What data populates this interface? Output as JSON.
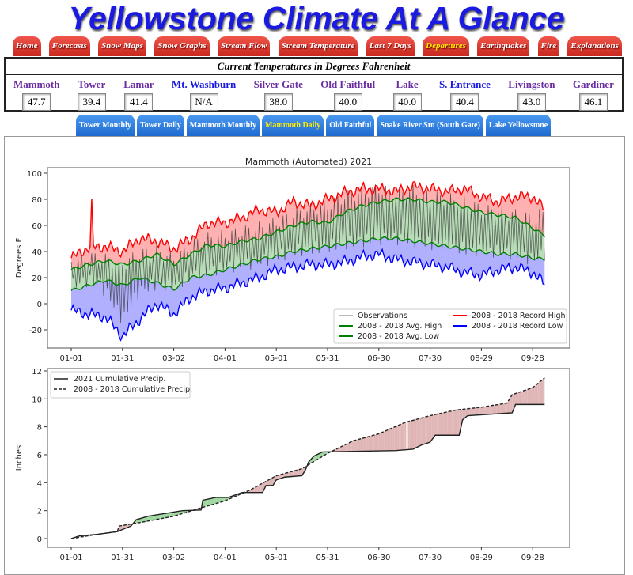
{
  "title": "Yellowstone Climate At A Glance",
  "nav": [
    {
      "label": "Home"
    },
    {
      "label": "Forecasts"
    },
    {
      "label": "Snow Maps"
    },
    {
      "label": "Snow Graphs"
    },
    {
      "label": "Stream Flow"
    },
    {
      "label": "Stream Temperature"
    },
    {
      "label": "Last 7 Days"
    },
    {
      "label": "Departures",
      "active": true
    },
    {
      "label": "Earthquakes"
    },
    {
      "label": "Fire"
    },
    {
      "label": "Explanations"
    }
  ],
  "temps": {
    "heading": "Current Temperatures in Degrees Fahrenheit",
    "stations": [
      {
        "name": "Mammoth",
        "value": "47.7"
      },
      {
        "name": "Tower",
        "value": "39.4"
      },
      {
        "name": "Lamar",
        "value": "41.4"
      },
      {
        "name": "Mt. Washburn",
        "value": "N/A",
        "link_color": "blue"
      },
      {
        "name": "Silver Gate",
        "value": "38.0"
      },
      {
        "name": "Old Faithful",
        "value": "40.0"
      },
      {
        "name": "Lake",
        "value": "40.0"
      },
      {
        "name": "S. Entrance",
        "value": "40.4",
        "link_color": "blue"
      },
      {
        "name": "Livingston",
        "value": "43.0"
      },
      {
        "name": "Gardiner",
        "value": "46.1"
      }
    ]
  },
  "subnav": [
    {
      "label": "Tower Monthly"
    },
    {
      "label": "Tower Daily"
    },
    {
      "label": "Mammoth Monthly"
    },
    {
      "label": "Mammoth Daily",
      "active": true
    },
    {
      "label": "Old Faithful"
    },
    {
      "label": "Snake River Stn (South Gate)"
    },
    {
      "label": "Lake Yellowstone"
    }
  ],
  "colors": {
    "nav_tab": "#d8352a",
    "sub_tab": "#2e7fe0",
    "active_text": "#ffea00",
    "record_high": "#ff0000",
    "record_low": "#0000ff",
    "avg": "#008000",
    "above": "#8fcf8f",
    "below": "#d9a9a9"
  },
  "chart_data": [
    {
      "type": "line",
      "title": "Mammoth (Automated) 2021",
      "xlabel": "",
      "ylabel": "Degrees F",
      "ylim": [
        -30,
        100
      ],
      "x_ticks": [
        "01-01",
        "01-31",
        "03-02",
        "04-01",
        "05-01",
        "05-31",
        "06-30",
        "07-30",
        "08-29",
        "09-28"
      ],
      "y_ticks": [
        -20,
        0,
        20,
        40,
        60,
        80,
        100
      ],
      "legend_position": "lower-right",
      "x_days": [
        0,
        10,
        20,
        30,
        40,
        50,
        60,
        70,
        80,
        90,
        100,
        110,
        120,
        130,
        140,
        150,
        160,
        170,
        180,
        190,
        200,
        210,
        220,
        230,
        240,
        250,
        260,
        270,
        277
      ],
      "series": [
        {
          "name": "2008 - 2018 Record High",
          "color": "#ff0000",
          "values": [
            35,
            43,
            44,
            40,
            50,
            48,
            42,
            50,
            62,
            62,
            66,
            72,
            70,
            78,
            75,
            80,
            85,
            88,
            88,
            86,
            90,
            88,
            86,
            88,
            82,
            78,
            82,
            82,
            72
          ]
        },
        {
          "name": "2008 - 2018 Avg. High",
          "color": "#008000",
          "values": [
            26,
            30,
            33,
            30,
            33,
            38,
            30,
            38,
            45,
            44,
            48,
            50,
            55,
            60,
            63,
            62,
            70,
            75,
            78,
            80,
            80,
            78,
            78,
            74,
            70,
            68,
            66,
            58,
            52
          ]
        },
        {
          "name": "2008 - 2018 Avg. Low",
          "color": "#008000",
          "values": [
            10,
            14,
            18,
            14,
            20,
            16,
            11,
            20,
            22,
            26,
            30,
            34,
            36,
            40,
            42,
            44,
            46,
            48,
            50,
            50,
            48,
            46,
            44,
            42,
            40,
            38,
            38,
            35,
            34
          ]
        },
        {
          "name": "2008 - 2018 Record Low",
          "color": "#0000ff",
          "values": [
            -5,
            -8,
            -10,
            -25,
            -12,
            0,
            -8,
            5,
            10,
            12,
            16,
            20,
            26,
            28,
            30,
            30,
            32,
            36,
            38,
            34,
            32,
            30,
            28,
            24,
            22,
            26,
            28,
            24,
            15
          ]
        },
        {
          "name": "Observations",
          "color": "#444444",
          "daily_high": [
            32,
            36,
            34,
            30,
            38,
            40,
            34,
            45,
            50,
            52,
            55,
            58,
            62,
            68,
            72,
            75,
            82,
            85,
            88,
            84,
            86,
            82,
            80,
            78,
            72,
            70,
            68,
            65,
            70
          ],
          "daily_low": [
            14,
            18,
            10,
            -12,
            10,
            15,
            12,
            22,
            25,
            28,
            30,
            32,
            36,
            40,
            42,
            44,
            46,
            48,
            50,
            50,
            48,
            46,
            44,
            42,
            40,
            40,
            38,
            34,
            38
          ]
        }
      ],
      "record_high_spike": {
        "day": 12,
        "value": 76
      }
    },
    {
      "type": "line",
      "title": "",
      "xlabel": "",
      "ylabel": "Inches",
      "ylim": [
        -0.5,
        12
      ],
      "x_ticks": [
        "01-01",
        "01-31",
        "03-02",
        "04-01",
        "05-01",
        "05-31",
        "06-30",
        "07-30",
        "08-29",
        "09-28"
      ],
      "y_ticks": [
        0,
        2,
        4,
        6,
        8,
        10,
        12
      ],
      "legend_position": "upper-left",
      "series": [
        {
          "name": "2021 Cumulative Precip.",
          "style": "solid",
          "points": [
            [
              0,
              0
            ],
            [
              5,
              0.2
            ],
            [
              15,
              0.3
            ],
            [
              27,
              0.5
            ],
            [
              30,
              0.65
            ],
            [
              35,
              0.9
            ],
            [
              38,
              1.35
            ],
            [
              45,
              1.6
            ],
            [
              55,
              1.8
            ],
            [
              65,
              2.0
            ],
            [
              76,
              2.05
            ],
            [
              77,
              2.75
            ],
            [
              85,
              2.95
            ],
            [
              92,
              2.95
            ],
            [
              100,
              3.3
            ],
            [
              112,
              3.3
            ],
            [
              114,
              3.8
            ],
            [
              118,
              3.8
            ],
            [
              120,
              4.2
            ],
            [
              125,
              4.4
            ],
            [
              135,
              4.5
            ],
            [
              137,
              4.9
            ],
            [
              139,
              5.5
            ],
            [
              142,
              5.9
            ],
            [
              147,
              6.2
            ],
            [
              190,
              6.3
            ],
            [
              200,
              6.4
            ],
            [
              205,
              6.7
            ],
            [
              210,
              6.9
            ],
            [
              213,
              7.4
            ],
            [
              227,
              7.4
            ],
            [
              229,
              8.5
            ],
            [
              232,
              8.8
            ],
            [
              258,
              9.0
            ],
            [
              260,
              9.6
            ],
            [
              277,
              9.6
            ]
          ]
        },
        {
          "name": "2008 - 2018 Cumulative Precip.",
          "style": "dashed",
          "points": [
            [
              0,
              0
            ],
            [
              15,
              0.3
            ],
            [
              27,
              0.5
            ],
            [
              28,
              0.9
            ],
            [
              38,
              1.1
            ],
            [
              60,
              1.6
            ],
            [
              76,
              2.2
            ],
            [
              90,
              2.7
            ],
            [
              105,
              3.5
            ],
            [
              120,
              4.5
            ],
            [
              135,
              5.0
            ],
            [
              150,
              6.1
            ],
            [
              165,
              7.0
            ],
            [
              180,
              7.5
            ],
            [
              195,
              8.3
            ],
            [
              210,
              8.8
            ],
            [
              225,
              9.2
            ],
            [
              240,
              9.4
            ],
            [
              255,
              9.7
            ],
            [
              258,
              10.3
            ],
            [
              270,
              10.8
            ],
            [
              277,
              11.5
            ]
          ]
        }
      ]
    }
  ]
}
